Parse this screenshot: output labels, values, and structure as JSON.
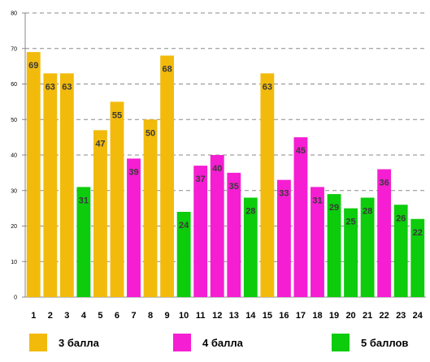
{
  "chart_data": {
    "type": "bar",
    "categories": [
      "1",
      "2",
      "3",
      "4",
      "5",
      "6",
      "7",
      "8",
      "9",
      "10",
      "11",
      "12",
      "13",
      "14",
      "15",
      "16",
      "17",
      "18",
      "19",
      "20",
      "21",
      "22",
      "23",
      "24"
    ],
    "values": [
      69,
      63,
      63,
      31,
      47,
      55,
      39,
      50,
      68,
      24,
      37,
      40,
      35,
      28,
      63,
      33,
      45,
      31,
      29,
      25,
      28,
      36,
      26,
      22
    ],
    "bar_group": [
      0,
      0,
      0,
      2,
      0,
      0,
      1,
      0,
      0,
      2,
      1,
      1,
      1,
      2,
      0,
      1,
      1,
      1,
      2,
      2,
      2,
      1,
      2,
      2
    ],
    "groups": [
      {
        "name": "3 балла",
        "color": "#f2bb0c"
      },
      {
        "name": "4 балла",
        "color": "#f51ed2"
      },
      {
        "name": "5 баллов",
        "color": "#0ccc0c"
      }
    ],
    "yticks": [
      "0",
      "10",
      "20",
      "30",
      "40",
      "50",
      "60",
      "70",
      "80"
    ],
    "ylim": [
      0,
      80
    ],
    "grid": true,
    "legend_position": "bottom"
  }
}
